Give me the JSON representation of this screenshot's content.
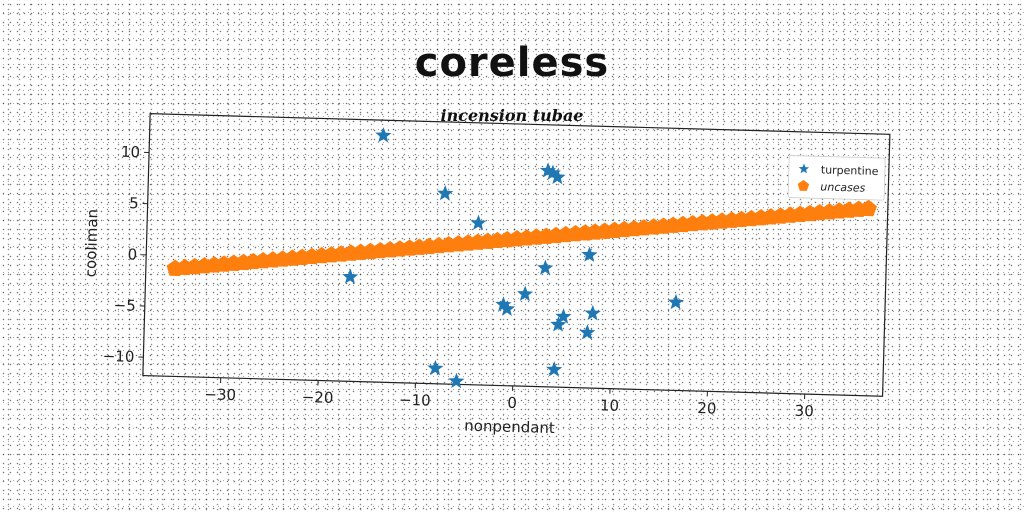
{
  "chart_data": {
    "type": "scatter",
    "title": "coreless",
    "subtitle": "incension tubae",
    "xlabel": "nonpendant",
    "ylabel": "cooliman",
    "xlim": [
      -38,
      38
    ],
    "ylim": [
      -11.8,
      13.8
    ],
    "xticks": [
      -30,
      -20,
      -10,
      0,
      10,
      20,
      30
    ],
    "xtick_labels": [
      "−30",
      "−20",
      "−10",
      "0",
      "10",
      "20",
      "30"
    ],
    "yticks": [
      -10,
      -5,
      0,
      5,
      10
    ],
    "ytick_labels": [
      "−10",
      "−5",
      "0",
      "5",
      "10"
    ],
    "grid": false,
    "legend_position": "top-right",
    "series": [
      {
        "name": "turpentine",
        "marker": "star",
        "color": "#1f77b4",
        "x": [
          -14,
          3,
          4,
          3.5,
          -7.5,
          -4,
          7.5,
          3,
          -17,
          1,
          -1.2,
          -0.8,
          16.5,
          8,
          5,
          4.5,
          7.5,
          -8,
          4.2,
          -5.8
        ],
        "y": [
          12.3,
          9.3,
          8.7,
          9.1,
          6.8,
          4,
          1.2,
          -0.2,
          -1.6,
          -2.8,
          -3.9,
          -4.3,
          -3.2,
          -4.5,
          -4.9,
          -5.7,
          -6.4,
          -10.3,
          -10.1,
          -11.5
        ]
      },
      {
        "name": "uncases",
        "marker": "pentagon",
        "color": "#ff7f0e",
        "x_start": -35,
        "x_end": 36,
        "n_points": 72,
        "slope": 0.109,
        "intercept": 2.55
      }
    ]
  }
}
